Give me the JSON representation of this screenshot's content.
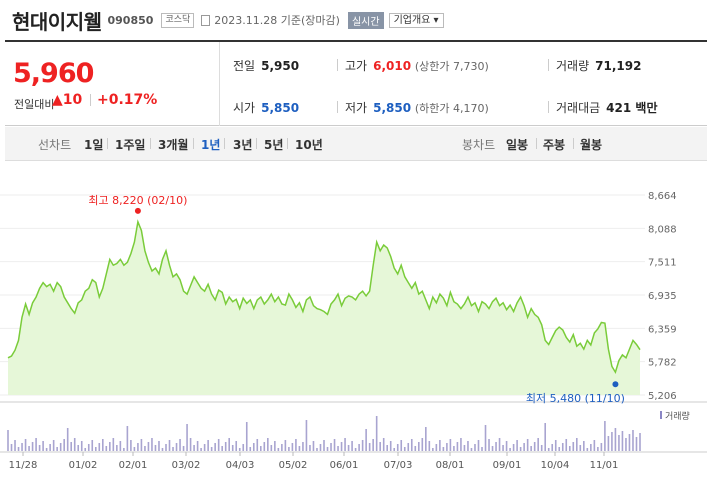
{
  "header": {
    "company_name": "현대이지웰",
    "code": "090850",
    "market": "코스닥",
    "date": "2023.11.28 기준(장마감)",
    "realtime_label": "실시간",
    "company_info_label": "기업개요 ▾"
  },
  "summary": {
    "price": "5,960",
    "change_label": "전일대비",
    "change_arrow": "▲",
    "change_amount": "10",
    "change_pct": "+0.17%",
    "prev_close_label": "전일",
    "prev_close": "5,950",
    "open_label": "시가",
    "open": "5,850",
    "high_label": "고가",
    "high": "6,010",
    "upper_limit": "(상한가 7,730)",
    "low_label": "저가",
    "low": "5,850",
    "lower_limit": "(하한가 4,170)",
    "volume_label": "거래량",
    "volume": "71,192",
    "trade_value_label": "거래대금",
    "trade_value": "421 백만"
  },
  "period_bar": {
    "line_chart_label": "선차트",
    "periods": [
      "1일",
      "1주일",
      "3개월",
      "1년",
      "3년",
      "5년",
      "10년"
    ],
    "active_period": "1년",
    "candle_chart_label": "봉차트",
    "candle_periods": [
      "일봉",
      "주봉",
      "월봉"
    ]
  },
  "colors": {
    "up": "#ee2222",
    "down": "#1e5fc0",
    "area_line": "#7acc3a",
    "area_fill": "#e6f7d8",
    "volume_bar": "#a8a4d0"
  },
  "chart_data": {
    "type": "area",
    "y_ticks": [
      "8,664",
      "8,088",
      "7,511",
      "6,935",
      "6,359",
      "5,782",
      "5,206"
    ],
    "ylim": [
      5206,
      8664
    ],
    "x_ticks": [
      "11/28",
      "01/02",
      "02/01",
      "03/02",
      "04/03",
      "05/02",
      "06/01",
      "07/03",
      "08/01",
      "09/01",
      "10/04",
      "11/01"
    ],
    "max_label": "최고 8,220 (02/10)",
    "min_label": "최저 5,480 (11/10)",
    "volume_label": "거래량",
    "series": [
      {
        "values": [
          5850,
          5880,
          5980,
          6150,
          6550,
          6780,
          6600,
          6800,
          6900,
          7050,
          7150,
          7080,
          7120,
          7000,
          7150,
          7080,
          6900,
          6800,
          6700,
          6620,
          6800,
          6850,
          7000,
          7050,
          7200,
          7150,
          6900,
          7050,
          7300,
          7550,
          7450,
          7480,
          7550,
          7450,
          7500,
          7650,
          7850,
          8200,
          8050,
          7700,
          7500,
          7350,
          7400,
          7300,
          7550,
          7700,
          7450,
          7250,
          7300,
          7200,
          7000,
          6950,
          7100,
          7250,
          7150,
          7050,
          7000,
          7120,
          6950,
          6850,
          7020,
          6980,
          6780,
          6900,
          6820,
          6860,
          6700,
          6880,
          6790,
          6850,
          6700,
          6850,
          6900,
          6780,
          6850,
          6950,
          6820,
          6900,
          6780,
          6760,
          6950,
          6850,
          6720,
          6800,
          6650,
          6850,
          6900,
          6750,
          6700,
          6680,
          6650,
          6600,
          6780,
          6850,
          6950,
          6750,
          6880,
          6920,
          6900,
          6850,
          6950,
          7000,
          6920,
          7000,
          7450,
          7850,
          7700,
          7800,
          7750,
          7600,
          7400,
          7300,
          7450,
          7250,
          7150,
          7050,
          7150,
          6950,
          7000,
          6850,
          6700,
          6900,
          6800,
          6950,
          6880,
          6750,
          6980,
          6820,
          6780,
          6700,
          6780,
          6900,
          6750,
          6800,
          6650,
          6820,
          6780,
          6700,
          6820,
          6880,
          6750,
          6800,
          6680,
          6760,
          6650,
          6800,
          6900,
          6750,
          6550,
          6700,
          6600,
          6550,
          6420,
          6150,
          6080,
          6200,
          6320,
          6380,
          6330,
          6200,
          6120,
          6250,
          6050,
          6100,
          6000,
          6150,
          6070,
          6280,
          6350,
          6460,
          6450,
          6000,
          5700,
          5600,
          5800,
          5900,
          5850,
          6000,
          6150,
          6080,
          5990
        ]
      }
    ]
  }
}
